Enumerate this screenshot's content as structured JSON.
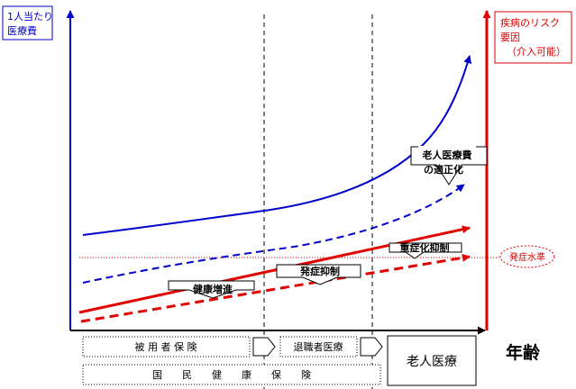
{
  "y_axis_left_label": [
    "1人当たり",
    "医療費"
  ],
  "y_axis_right_label": [
    "疾病のリスク",
    "要因",
    "（介入可能）"
  ],
  "x_axis_label": "年齢",
  "threshold_label": "発症水準",
  "callouts": {
    "elderly_cost": [
      "老人医療費",
      "の適正化"
    ],
    "severity": "重症化抑制",
    "onset": "発症抑制",
    "health": "健康増進"
  },
  "insurance": {
    "employee": "被 用 者 保 険",
    "retiree": "退職者医療",
    "elderly": "老人医療",
    "national": "国　　民　　健　　康　　保　　険"
  },
  "colors": {
    "cost_line": "#0000cc",
    "risk_line": "#e00000",
    "right_axis": "#e00000",
    "left_axis": "#0000cc",
    "dotted_level": "#e00000"
  }
}
